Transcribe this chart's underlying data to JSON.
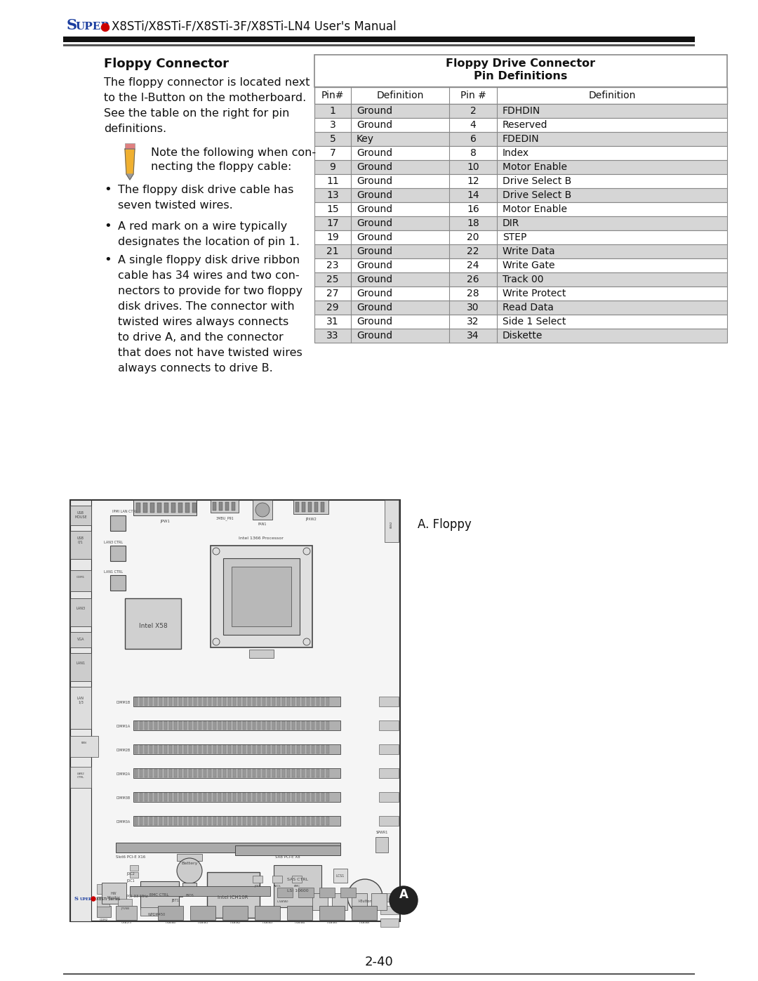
{
  "page_title_S": "S",
  "page_title_UPER": "UPER",
  "page_title_rest": "X8STi/X8STi-F/X8STi-3F/X8STi-LN4 User's Manual",
  "section_title": "Floppy Connector",
  "body_lines": [
    "The floppy connector is located next",
    "to the I-Button on the motherboard.",
    "See the table on the right for pin",
    "definitions."
  ],
  "note_lines": [
    "Note the following when con-",
    "necting the floppy cable:"
  ],
  "bullet1": [
    "The floppy disk drive cable has",
    "seven twisted wires."
  ],
  "bullet2": [
    "A red mark on a wire typically",
    "designates the location of pin 1."
  ],
  "bullet3": [
    "A single floppy disk drive ribbon",
    "cable has 34 wires and two con-",
    "nectors to provide for two floppy",
    "disk drives. The connector with",
    "twisted wires always connects",
    "to drive A, and the connector",
    "that does not have twisted wires",
    "always connects to drive B."
  ],
  "tbl_t1": "Floppy Drive Connector",
  "tbl_t2": "Pin Definitions",
  "tbl_cols": [
    "Pin#",
    "Definition",
    "Pin #",
    "Definition"
  ],
  "tbl_rows": [
    [
      "1",
      "Ground",
      "2",
      "FDHDIN"
    ],
    [
      "3",
      "Ground",
      "4",
      "Reserved"
    ],
    [
      "5",
      "Key",
      "6",
      "FDEDIN"
    ],
    [
      "7",
      "Ground",
      "8",
      "Index"
    ],
    [
      "9",
      "Ground",
      "10",
      "Motor Enable"
    ],
    [
      "11",
      "Ground",
      "12",
      "Drive Select B"
    ],
    [
      "13",
      "Ground",
      "14",
      "Drive Select B"
    ],
    [
      "15",
      "Ground",
      "16",
      "Motor Enable"
    ],
    [
      "17",
      "Ground",
      "18",
      "DIR"
    ],
    [
      "19",
      "Ground",
      "20",
      "STEP"
    ],
    [
      "21",
      "Ground",
      "22",
      "Write Data"
    ],
    [
      "23",
      "Ground",
      "24",
      "Write Gate"
    ],
    [
      "25",
      "Ground",
      "26",
      "Track 00"
    ],
    [
      "27",
      "Ground",
      "28",
      "Write Protect"
    ],
    [
      "29",
      "Ground",
      "30",
      "Read Data"
    ],
    [
      "31",
      "Ground",
      "32",
      "Side 1 Select"
    ],
    [
      "33",
      "Ground",
      "34",
      "Diskette"
    ]
  ],
  "shaded": [
    0,
    2,
    4,
    6,
    8,
    10,
    12,
    14,
    16
  ],
  "shade_clr": "#d6d6d6",
  "white": "#ffffff",
  "border_clr": "#888888",
  "super_blue": "#1b3d9f",
  "red_clr": "#cc0000",
  "dark": "#111111",
  "gray_line": "#555555",
  "page_num": "2-40",
  "a_label": "A. Floppy",
  "bg": "#ffffff",
  "mb_outline": "#333333",
  "mb_fill": "#f5f5f5",
  "mb_dark": "#444444",
  "mb_gray": "#888888",
  "mb_lgray": "#bbbbbb",
  "header_thick": 8,
  "header_thin": 3
}
